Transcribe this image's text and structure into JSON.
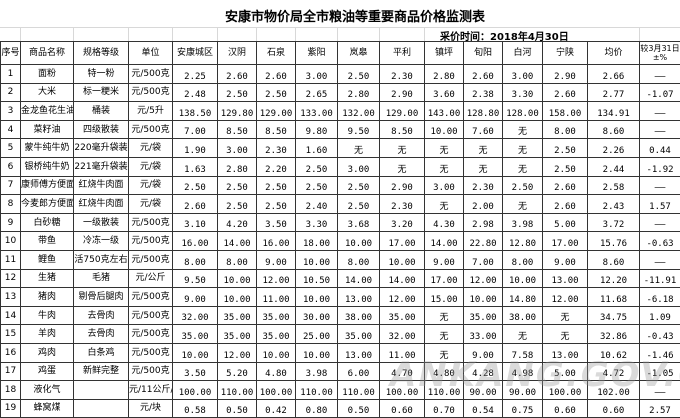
{
  "title": "安康市物价局全市粮油等重要商品价格监测表",
  "date_label": "采价时间：2018年4月30日",
  "watermark": "ANKANG.GOV.CN",
  "headers": [
    "序号",
    "商品名称",
    "规格等级",
    "单位",
    "安康城区",
    "汉阴",
    "石泉",
    "紫阳",
    "岚皋",
    "平利",
    "镇坪",
    "旬阳",
    "白河",
    "宁陕",
    "均价",
    "较3月31日±%"
  ],
  "rows": [
    [
      "1",
      "面粉",
      "特一粉",
      "元/500克",
      "2.25",
      "2.60",
      "2.60",
      "3.00",
      "2.50",
      "2.30",
      "2.80",
      "2.60",
      "3.00",
      "2.90",
      "2.66",
      "——"
    ],
    [
      "2",
      "大米",
      "标一粳米",
      "元/500克",
      "2.48",
      "2.50",
      "2.50",
      "2.65",
      "2.80",
      "2.90",
      "3.60",
      "2.38",
      "3.30",
      "2.60",
      "2.77",
      "-1.07"
    ],
    [
      "3",
      "金龙鱼花生油",
      "桶装",
      "元/5升",
      "138.50",
      "129.80",
      "129.00",
      "133.00",
      "132.00",
      "129.00",
      "143.00",
      "128.80",
      "128.00",
      "158.00",
      "134.91",
      "——"
    ],
    [
      "4",
      "菜籽油",
      "四级散装",
      "元/500克",
      "7.00",
      "8.50",
      "8.50",
      "9.80",
      "9.50",
      "8.50",
      "10.00",
      "7.60",
      "无",
      "8.00",
      "8.60",
      "——"
    ],
    [
      "5",
      "蒙牛纯牛奶",
      "220毫升袋装",
      "元/袋",
      "1.90",
      "3.00",
      "2.30",
      "1.60",
      "无",
      "无",
      "无",
      "无",
      "无",
      "2.50",
      "2.26",
      "0.44"
    ],
    [
      "6",
      "银桥纯牛奶",
      "221毫升袋装",
      "元/袋",
      "1.63",
      "2.80",
      "2.20",
      "2.50",
      "3.00",
      "无",
      "无",
      "无",
      "无",
      "2.50",
      "2.44",
      "-1.92"
    ],
    [
      "7",
      "康师傅方便面",
      "红烧牛肉面",
      "元/袋",
      "2.50",
      "2.50",
      "2.50",
      "2.50",
      "2.50",
      "2.90",
      "3.00",
      "2.30",
      "2.50",
      "2.60",
      "2.58",
      "——"
    ],
    [
      "8",
      "今麦郎方便面",
      "红烧牛肉面",
      "元/袋",
      "2.60",
      "2.50",
      "2.50",
      "2.40",
      "2.50",
      "2.30",
      "无",
      "2.00",
      "无",
      "2.60",
      "2.43",
      "1.57"
    ],
    [
      "9",
      "白砂糖",
      "一级散装",
      "元/500克",
      "3.10",
      "4.20",
      "3.50",
      "3.30",
      "3.68",
      "3.20",
      "4.30",
      "2.98",
      "3.98",
      "5.00",
      "3.72",
      "——"
    ],
    [
      "10",
      "带鱼",
      "冷冻一级",
      "元/500克",
      "16.00",
      "14.00",
      "16.00",
      "18.00",
      "10.00",
      "17.00",
      "14.00",
      "22.80",
      "12.80",
      "17.00",
      "15.76",
      "-0.63"
    ],
    [
      "11",
      "鲤鱼",
      "活750克左右",
      "元/500克",
      "8.00",
      "8.00",
      "9.00",
      "10.00",
      "8.00",
      "10.00",
      "9.00",
      "7.00",
      "8.00",
      "9.00",
      "8.60",
      "——"
    ],
    [
      "12",
      "生猪",
      "毛猪",
      "元/公斤",
      "9.50",
      "10.00",
      "12.00",
      "10.50",
      "14.00",
      "14.00",
      "17.00",
      "12.00",
      "10.00",
      "13.00",
      "12.20",
      "-11.91"
    ],
    [
      "13",
      "猪肉",
      "剔骨后腿肉",
      "元/500克",
      "9.00",
      "10.00",
      "11.00",
      "10.00",
      "13.00",
      "12.00",
      "15.00",
      "10.00",
      "14.80",
      "12.00",
      "11.68",
      "-6.18"
    ],
    [
      "14",
      "牛肉",
      "去骨肉",
      "元/500克",
      "32.00",
      "35.00",
      "35.00",
      "30.00",
      "38.00",
      "35.00",
      "无",
      "35.00",
      "38.00",
      "无",
      "34.75",
      "1.09"
    ],
    [
      "15",
      "羊肉",
      "去骨肉",
      "元/500克",
      "35.00",
      "35.00",
      "35.00",
      "25.00",
      "35.00",
      "32.00",
      "无",
      "33.00",
      "无",
      "无",
      "32.86",
      "-0.43"
    ],
    [
      "16",
      "鸡肉",
      "白条鸡",
      "元/500克",
      "10.00",
      "12.00",
      "10.00",
      "10.00",
      "13.00",
      "11.00",
      "无",
      "9.00",
      "7.58",
      "13.00",
      "10.62",
      "-1.46"
    ],
    [
      "17",
      "鸡蛋",
      "新鲜完整",
      "元/500克",
      "3.50",
      "5.20",
      "4.80",
      "3.98",
      "6.00",
      "4.70",
      "4.80",
      "4.28",
      "4.98",
      "5.00",
      "4.72",
      "-1.05"
    ],
    [
      "18",
      "液化气",
      "",
      "元/11公斤/瓶",
      "100.00",
      "110.00",
      "100.00",
      "110.00",
      "110.00",
      "100.00",
      "110.00",
      "90.00",
      "90.00",
      "100.00",
      "102.00",
      "——"
    ],
    [
      "19",
      "蜂窝煤",
      "",
      "元/块",
      "0.58",
      "0.50",
      "0.42",
      "0.80",
      "0.50",
      "0.60",
      "0.70",
      "0.54",
      "0.75",
      "0.60",
      "0.60",
      "2.57"
    ]
  ]
}
